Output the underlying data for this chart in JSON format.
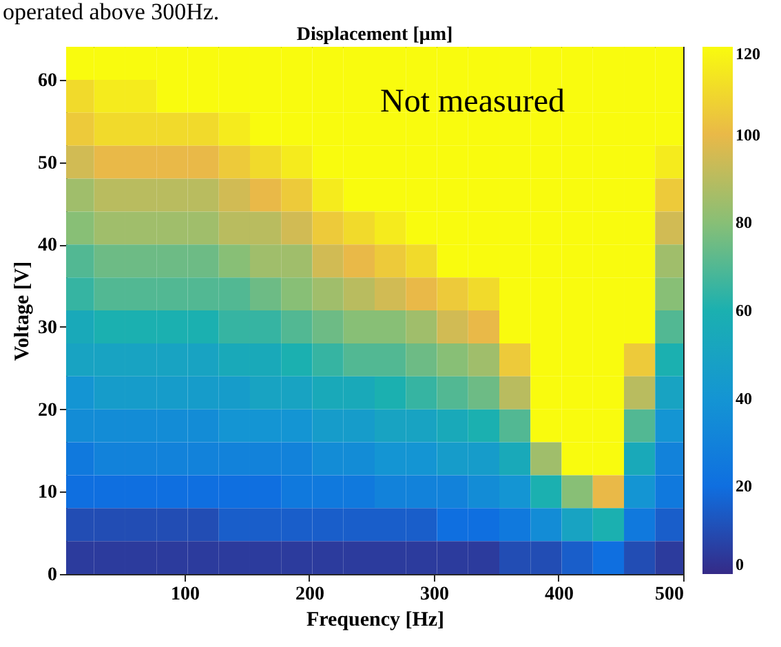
{
  "chart_data": {
    "type": "heatmap",
    "title": "Displacement [μm]",
    "xlabel": "Frequency [Hz]",
    "ylabel": "Voltage [V]",
    "annotations": [
      "operated above 300Hz.",
      "Not measured"
    ],
    "x": [
      15,
      40,
      65,
      90,
      115,
      140,
      165,
      190,
      215,
      240,
      265,
      290,
      315,
      340,
      365,
      390,
      415,
      440,
      465,
      490
    ],
    "xlim": [
      5,
      500
    ],
    "xticks": [
      100,
      200,
      300,
      400,
      500
    ],
    "ylim": [
      0,
      64
    ],
    "yticks": [
      0,
      10,
      20,
      30,
      40,
      50,
      60
    ],
    "clim": [
      0,
      120
    ],
    "cticks": [
      0,
      20,
      40,
      60,
      80,
      100,
      120
    ],
    "cells": [
      [
        120,
        120,
        120,
        120,
        120,
        120,
        120,
        120,
        120,
        120,
        120,
        120,
        120,
        120,
        120,
        120,
        120,
        120,
        120,
        120
      ],
      [
        110,
        115,
        115,
        120,
        120,
        120,
        120,
        120,
        120,
        120,
        120,
        120,
        120,
        120,
        120,
        120,
        120,
        120,
        120,
        120
      ],
      [
        105,
        110,
        110,
        110,
        110,
        115,
        120,
        120,
        120,
        120,
        120,
        120,
        120,
        120,
        120,
        120,
        120,
        120,
        120,
        120
      ],
      [
        95,
        100,
        100,
        100,
        100,
        105,
        110,
        115,
        120,
        120,
        120,
        120,
        120,
        120,
        120,
        120,
        120,
        120,
        120,
        115
      ],
      [
        85,
        90,
        90,
        90,
        90,
        95,
        100,
        105,
        115,
        120,
        120,
        120,
        120,
        120,
        120,
        120,
        120,
        120,
        120,
        105
      ],
      [
        80,
        85,
        85,
        85,
        85,
        90,
        90,
        95,
        105,
        110,
        115,
        120,
        120,
        120,
        120,
        120,
        120,
        120,
        120,
        95
      ],
      [
        70,
        75,
        75,
        75,
        75,
        80,
        85,
        85,
        95,
        100,
        105,
        110,
        120,
        120,
        120,
        120,
        120,
        120,
        120,
        85
      ],
      [
        65,
        70,
        70,
        70,
        70,
        70,
        75,
        80,
        85,
        90,
        95,
        100,
        105,
        110,
        120,
        120,
        120,
        120,
        120,
        80
      ],
      [
        55,
        60,
        60,
        60,
        60,
        65,
        65,
        70,
        75,
        80,
        80,
        85,
        95,
        100,
        120,
        120,
        120,
        120,
        120,
        70
      ],
      [
        50,
        50,
        50,
        50,
        50,
        55,
        55,
        60,
        65,
        70,
        70,
        75,
        80,
        85,
        105,
        120,
        120,
        120,
        105,
        60
      ],
      [
        40,
        45,
        45,
        45,
        45,
        45,
        50,
        50,
        55,
        55,
        60,
        65,
        70,
        75,
        90,
        120,
        120,
        120,
        90,
        50
      ],
      [
        35,
        35,
        35,
        35,
        35,
        40,
        40,
        40,
        45,
        45,
        50,
        50,
        55,
        60,
        70,
        120,
        120,
        120,
        70,
        40
      ],
      [
        25,
        30,
        30,
        30,
        30,
        30,
        30,
        30,
        35,
        35,
        40,
        40,
        45,
        45,
        55,
        85,
        120,
        120,
        55,
        30
      ],
      [
        20,
        20,
        20,
        20,
        20,
        20,
        20,
        25,
        25,
        25,
        30,
        30,
        30,
        35,
        40,
        60,
        80,
        100,
        40,
        25
      ],
      [
        10,
        10,
        10,
        10,
        10,
        15,
        15,
        15,
        15,
        15,
        15,
        15,
        20,
        20,
        25,
        35,
        50,
        60,
        25,
        15
      ],
      [
        5,
        5,
        5,
        5,
        5,
        5,
        5,
        5,
        5,
        5,
        5,
        5,
        5,
        5,
        10,
        10,
        15,
        20,
        10,
        5
      ]
    ]
  }
}
